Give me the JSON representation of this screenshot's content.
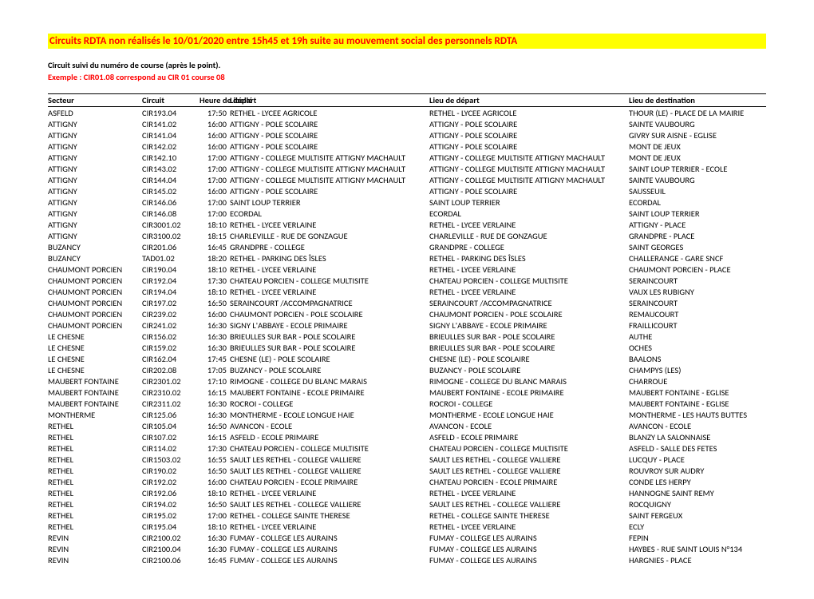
{
  "title": "Circuits RDTA non réalisés le 10/01/2020 entre 15h45 et 19h suite au mouvement social des personnels RDTA",
  "subtitle": "Circuit suivi du numéro de course (après le point).",
  "example": "Exemple : CIR01.08 correspond au CIR 01 course 08",
  "columns": {
    "secteur": "Secteur",
    "circuit": "Circuit",
    "heure": "Heure de départ",
    "libelle": "Libellé",
    "depart": "Lieu de départ",
    "dest": "Lieu de destination"
  },
  "rows": [
    [
      "ASFELD",
      "CIR193.04",
      "17:50",
      "RETHEL - LYCEE AGRICOLE",
      "RETHEL - LYCEE AGRICOLE",
      "THOUR (LE) - PLACE DE LA MAIRIE"
    ],
    [
      "ATTIGNY",
      "CIR141.02",
      "16:00",
      "ATTIGNY - POLE SCOLAIRE",
      "ATTIGNY - POLE SCOLAIRE",
      "SAINTE VAUBOURG"
    ],
    [
      "ATTIGNY",
      "CIR141.04",
      "16:00",
      "ATTIGNY - POLE SCOLAIRE",
      "ATTIGNY - POLE SCOLAIRE",
      "GIVRY SUR AISNE - EGLISE"
    ],
    [
      "ATTIGNY",
      "CIR142.02",
      "16:00",
      "ATTIGNY - POLE SCOLAIRE",
      "ATTIGNY - POLE SCOLAIRE",
      "MONT DE JEUX"
    ],
    [
      "ATTIGNY",
      "CIR142.10",
      "17:00",
      "ATTIGNY - COLLEGE MULTISITE ATTIGNY MACHAULT",
      "ATTIGNY - COLLEGE MULTISITE ATTIGNY MACHAULT",
      "MONT DE JEUX"
    ],
    [
      "ATTIGNY",
      "CIR143.02",
      "17:00",
      "ATTIGNY - COLLEGE MULTISITE ATTIGNY MACHAULT",
      "ATTIGNY - COLLEGE MULTISITE ATTIGNY MACHAULT",
      "SAINT LOUP TERRIER - ECOLE"
    ],
    [
      "ATTIGNY",
      "CIR144.04",
      "17:00",
      "ATTIGNY - COLLEGE MULTISITE ATTIGNY MACHAULT",
      "ATTIGNY - COLLEGE MULTISITE ATTIGNY MACHAULT",
      "SAINTE VAUBOURG"
    ],
    [
      "ATTIGNY",
      "CIR145.02",
      "16:00",
      "ATTIGNY - POLE SCOLAIRE",
      "ATTIGNY - POLE SCOLAIRE",
      "SAUSSEUIL"
    ],
    [
      "ATTIGNY",
      "CIR146.06",
      "17:00",
      "SAINT LOUP TERRIER",
      "SAINT LOUP TERRIER",
      "ECORDAL"
    ],
    [
      "ATTIGNY",
      "CIR146.08",
      "17:00",
      "ECORDAL",
      "ECORDAL",
      "SAINT LOUP TERRIER"
    ],
    [
      "ATTIGNY",
      "CIR3001.02",
      "18:10",
      "RETHEL - LYCEE VERLAINE",
      "RETHEL - LYCEE VERLAINE",
      "ATTIGNY - PLACE"
    ],
    [
      "ATTIGNY",
      "CIR3100.02",
      "18:15",
      "CHARLEVILLE - RUE DE GONZAGUE",
      "CHARLEVILLE - RUE DE GONZAGUE",
      "GRANDPRE - PLACE"
    ],
    [
      "BUZANCY",
      "CIR201.06",
      "16:45",
      "GRANDPRE - COLLEGE",
      "GRANDPRE - COLLEGE",
      "SAINT GEORGES"
    ],
    [
      "BUZANCY",
      "TAD01.02",
      "18:20",
      "RETHEL - PARKING DES ÎSLES",
      "RETHEL - PARKING DES ÎSLES",
      "CHALLERANGE - GARE SNCF"
    ],
    [
      "CHAUMONT PORCIEN",
      "CIR190.04",
      "18:10",
      "RETHEL - LYCEE VERLAINE",
      "RETHEL - LYCEE VERLAINE",
      "CHAUMONT PORCIEN - PLACE"
    ],
    [
      "CHAUMONT PORCIEN",
      "CIR192.04",
      "17:30",
      "CHATEAU PORCIEN - COLLEGE MULTISITE",
      "CHATEAU PORCIEN - COLLEGE MULTISITE",
      "SERAINCOURT"
    ],
    [
      "CHAUMONT PORCIEN",
      "CIR194.04",
      "18:10",
      "RETHEL - LYCEE VERLAINE",
      "RETHEL - LYCEE VERLAINE",
      "VAUX LES RUBIGNY"
    ],
    [
      "CHAUMONT PORCIEN",
      "CIR197.02",
      "16:50",
      "SERAINCOURT /ACCOMPAGNATRICE",
      "SERAINCOURT /ACCOMPAGNATRICE",
      "SERAINCOURT"
    ],
    [
      "CHAUMONT PORCIEN",
      "CIR239.02",
      "16:00",
      "CHAUMONT PORCIEN - POLE SCOLAIRE",
      "CHAUMONT PORCIEN - POLE SCOLAIRE",
      "REMAUCOURT"
    ],
    [
      "CHAUMONT PORCIEN",
      "CIR241.02",
      "16:30",
      "SIGNY L'ABBAYE - ECOLE PRIMAIRE",
      "SIGNY L'ABBAYE - ECOLE PRIMAIRE",
      "FRAILLICOURT"
    ],
    [
      "LE CHESNE",
      "CIR156.02",
      "16:30",
      "BRIEULLES SUR BAR - POLE SCOLAIRE",
      "BRIEULLES SUR BAR - POLE SCOLAIRE",
      "AUTHE"
    ],
    [
      "LE CHESNE",
      "CIR159.02",
      "16:30",
      "BRIEULLES SUR BAR - POLE SCOLAIRE",
      "BRIEULLES SUR BAR - POLE SCOLAIRE",
      "OCHES"
    ],
    [
      "LE CHESNE",
      "CIR162.04",
      "17:45",
      "CHESNE (LE) - POLE SCOLAIRE",
      "CHESNE (LE) - POLE SCOLAIRE",
      "BAALONS"
    ],
    [
      "LE CHESNE",
      "CIR202.08",
      "17:05",
      "BUZANCY - POLE SCOLAIRE",
      "BUZANCY - POLE SCOLAIRE",
      "CHAMPYS (LES)"
    ],
    [
      "MAUBERT FONTAINE",
      "CIR2301.02",
      "17:10",
      "RIMOGNE - COLLEGE DU BLANC MARAIS",
      "RIMOGNE - COLLEGE DU BLANC MARAIS",
      "CHARROUE"
    ],
    [
      "MAUBERT FONTAINE",
      "CIR2310.02",
      "16:15",
      "MAUBERT FONTAINE - ECOLE PRIMAIRE",
      "MAUBERT FONTAINE - ECOLE PRIMAIRE",
      "MAUBERT FONTAINE - EGLISE"
    ],
    [
      "MAUBERT FONTAINE",
      "CIR2311.02",
      "16:30",
      "ROCROI - COLLEGE",
      "ROCROI - COLLEGE",
      "MAUBERT FONTAINE - EGLISE"
    ],
    [
      "MONTHERME",
      "CIR125.06",
      "16:30",
      "MONTHERME - ECOLE LONGUE HAIE",
      "MONTHERME - ECOLE LONGUE HAIE",
      "MONTHERME - LES HAUTS BUTTES"
    ],
    [
      "RETHEL",
      "CIR105.04",
      "16:50",
      "AVANCON - ECOLE",
      "AVANCON - ECOLE",
      "AVANCON - ECOLE"
    ],
    [
      "RETHEL",
      "CIR107.02",
      "16:15",
      "ASFELD - ECOLE PRIMAIRE",
      "ASFELD - ECOLE PRIMAIRE",
      "BLANZY LA SALONNAISE"
    ],
    [
      "RETHEL",
      "CIR114.02",
      "17:30",
      "CHATEAU PORCIEN - COLLEGE MULTISITE",
      "CHATEAU PORCIEN - COLLEGE MULTISITE",
      "ASFELD - SALLE DES FETES"
    ],
    [
      "RETHEL",
      "CIR1503.02",
      "16:55",
      "SAULT LES RETHEL - COLLEGE VALLIERE",
      "SAULT LES RETHEL - COLLEGE VALLIERE",
      "LUCQUY - PLACE"
    ],
    [
      "RETHEL",
      "CIR190.02",
      "16:50",
      "SAULT LES RETHEL - COLLEGE VALLIERE",
      "SAULT LES RETHEL - COLLEGE VALLIERE",
      "ROUVROY SUR AUDRY"
    ],
    [
      "RETHEL",
      "CIR192.02",
      "16:00",
      "CHATEAU PORCIEN - ECOLE PRIMAIRE",
      "CHATEAU PORCIEN - ECOLE PRIMAIRE",
      "CONDE LES HERPY"
    ],
    [
      "RETHEL",
      "CIR192.06",
      "18:10",
      "RETHEL - LYCEE VERLAINE",
      "RETHEL - LYCEE VERLAINE",
      "HANNOGNE SAINT REMY"
    ],
    [
      "RETHEL",
      "CIR194.02",
      "16:50",
      "SAULT LES RETHEL - COLLEGE VALLIERE",
      "SAULT LES RETHEL - COLLEGE VALLIERE",
      "ROCQUIGNY"
    ],
    [
      "RETHEL",
      "CIR195.02",
      "17:00",
      "RETHEL - COLLEGE SAINTE THERESE",
      "RETHEL - COLLEGE SAINTE THERESE",
      "SAINT FERGEUX"
    ],
    [
      "RETHEL",
      "CIR195.04",
      "18:10",
      "RETHEL - LYCEE VERLAINE",
      "RETHEL - LYCEE VERLAINE",
      "ECLY"
    ],
    [
      "REVIN",
      "CIR2100.02",
      "16:30",
      "FUMAY - COLLEGE LES AURAINS",
      "FUMAY - COLLEGE LES AURAINS",
      "FEPIN"
    ],
    [
      "REVIN",
      "CIR2100.04",
      "16:30",
      "FUMAY - COLLEGE LES AURAINS",
      "FUMAY - COLLEGE LES AURAINS",
      "HAYBES - RUE SAINT LOUIS N°134"
    ],
    [
      "REVIN",
      "CIR2100.06",
      "16:45",
      "FUMAY - COLLEGE LES AURAINS",
      "FUMAY - COLLEGE LES AURAINS",
      "HARGNIES - PLACE"
    ]
  ]
}
